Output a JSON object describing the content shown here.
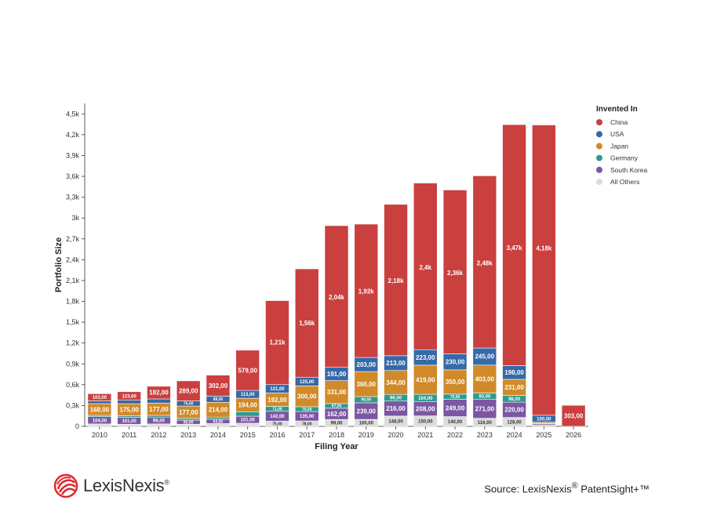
{
  "chart_data": {
    "type": "bar",
    "stacked": true,
    "xlabel": "Filing Year",
    "ylabel": "Portfolio Size",
    "ylim": [
      0,
      4650
    ],
    "yticks": [
      {
        "value": 0,
        "label": "0"
      },
      {
        "value": 300,
        "label": "0,3k"
      },
      {
        "value": 600,
        "label": "0,6k"
      },
      {
        "value": 900,
        "label": "0,9k"
      },
      {
        "value": 1200,
        "label": "1,2k"
      },
      {
        "value": 1500,
        "label": "1,5k"
      },
      {
        "value": 1800,
        "label": "1,8k"
      },
      {
        "value": 2100,
        "label": "2,1k"
      },
      {
        "value": 2400,
        "label": "2,4k"
      },
      {
        "value": 2700,
        "label": "2,7k"
      },
      {
        "value": 3000,
        "label": "3k"
      },
      {
        "value": 3300,
        "label": "3,3k"
      },
      {
        "value": 3600,
        "label": "3,6k"
      },
      {
        "value": 3900,
        "label": "3,9k"
      },
      {
        "value": 4200,
        "label": "4,2k"
      },
      {
        "value": 4500,
        "label": "4,5k"
      }
    ],
    "grid": false,
    "legend_title": "Invented In",
    "legend_position": "right",
    "categories": [
      "2010",
      "2011",
      "2012",
      "2013",
      "2014",
      "2015",
      "2016",
      "2017",
      "2018",
      "2019",
      "2020",
      "2021",
      "2022",
      "2023",
      "2024",
      "2025",
      "2026"
    ],
    "series": [
      {
        "name": "All Others",
        "color": "#dcdcdc",
        "values": [
          35,
          30,
          35,
          30,
          40,
          45,
          75,
          78,
          99,
          100,
          148,
          150,
          140,
          116,
          128,
          15,
          0
        ],
        "labels": [
          "",
          "",
          "",
          "",
          "",
          "",
          "75,00",
          "78,00",
          "99,00",
          "100,00",
          "148,00",
          "150,00",
          "140,00",
          "116,00",
          "128,00",
          "",
          ""
        ]
      },
      {
        "name": "South Korea",
        "color": "#7b56a2",
        "values": [
          104,
          101,
          98,
          60,
          63,
          101,
          142,
          135,
          162,
          239,
          216,
          208,
          249,
          271,
          220,
          20,
          0
        ],
        "labels": [
          "104,00",
          "101,00",
          "98,00",
          "60,00",
          "63,00",
          "101,00",
          "142,00",
          "135,00",
          "162,00",
          "239,00",
          "216,00",
          "208,00",
          "249,00",
          "271,00",
          "220,00",
          "",
          ""
        ]
      },
      {
        "name": "Germany",
        "color": "#2f9a8c",
        "values": [
          20,
          20,
          25,
          25,
          30,
          65,
          71,
          70,
          67,
          90,
          96,
          104,
          75,
          93,
          98,
          10,
          0
        ],
        "labels": [
          "",
          "",
          "",
          "",
          "",
          "",
          "71,00",
          "70,00",
          "67,00",
          "90,00",
          "96,00",
          "104,00",
          "75,00",
          "93,00",
          "98,00",
          "",
          ""
        ]
      },
      {
        "name": "Japan",
        "color": "#d08a2a",
        "values": [
          168,
          175,
          177,
          177,
          214,
          194,
          192,
          300,
          331,
          360,
          344,
          419,
          350,
          403,
          231,
          15,
          0
        ],
        "labels": [
          "168,00",
          "175,00",
          "177,00",
          "177,00",
          "214,00",
          "194,00",
          "192,00",
          "300,00",
          "331,00",
          "360,00",
          "344,00",
          "419,00",
          "350,00",
          "403,00",
          "231,00",
          "",
          ""
        ]
      },
      {
        "name": "USA",
        "color": "#3569a8",
        "values": [
          40,
          50,
          60,
          74,
          88,
          113,
          121,
          125,
          191,
          203,
          213,
          223,
          230,
          245,
          198,
          100,
          0
        ],
        "labels": [
          "",
          "",
          "",
          "74,00",
          "88,00",
          "113,00",
          "121,00",
          "125,00",
          "191,00",
          "203,00",
          "213,00",
          "223,00",
          "230,00",
          "245,00",
          "198,00",
          "100,00",
          ""
        ]
      },
      {
        "name": "China",
        "color": "#c9403e",
        "values": [
          103,
          123,
          182,
          289,
          302,
          579,
          1210,
          1560,
          2040,
          1920,
          2180,
          2400,
          2360,
          2480,
          3470,
          4180,
          303
        ],
        "labels": [
          "103,00",
          "123,00",
          "182,00",
          "289,00",
          "302,00",
          "579,00",
          "1,21k",
          "1,56k",
          "2,04k",
          "1,92k",
          "2,18k",
          "2,4k",
          "2,36k",
          "2,48k",
          "3,47k",
          "4,18k",
          "303,00"
        ]
      }
    ],
    "legend_order": [
      "China",
      "USA",
      "Japan",
      "Germany",
      "South Korea",
      "All Others"
    ]
  },
  "footer": {
    "logo_text": "LexisNexis",
    "logo_mark": "®",
    "source_prefix": "Source: LexisNexis",
    "source_reg": "®",
    "source_suffix": " PatentSight+™"
  }
}
